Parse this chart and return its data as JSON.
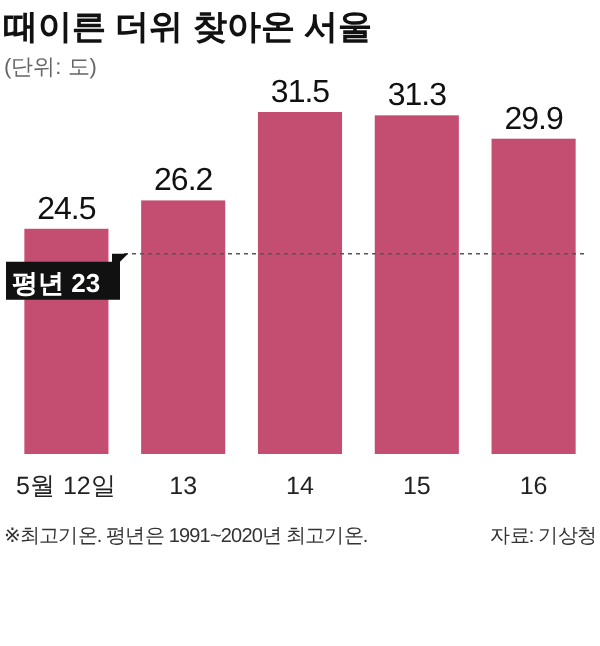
{
  "chart_data": {
    "type": "bar",
    "title": "때이른 더위 찾아온 서울",
    "subtitle": "(단위: 도)",
    "categories": [
      "5월 12일",
      "13",
      "14",
      "15",
      "16"
    ],
    "values": [
      24.5,
      26.2,
      31.5,
      31.3,
      29.9
    ],
    "color": "#c44d72",
    "data_labels": true,
    "ylim": [
      11,
      31.5
    ],
    "ref_lines": [
      {
        "axis": "y",
        "value": 23,
        "label": "평년 23",
        "color": "#555555",
        "line_style": "dashed"
      }
    ],
    "annotations": [
      "※최고기온. 평년은 1991~2020년 최고기온.",
      "자료: 기상청"
    ],
    "grid": false
  }
}
